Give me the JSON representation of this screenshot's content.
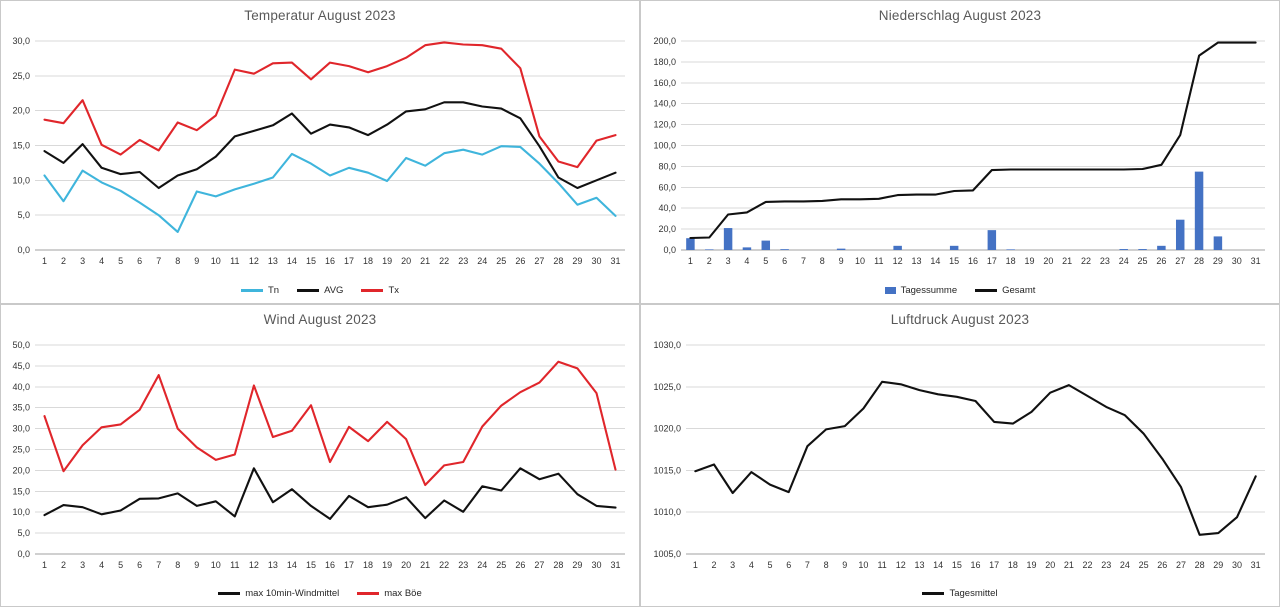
{
  "chart_data": [
    {
      "type": "line",
      "title": "Temperatur August 2023",
      "categories": [
        1,
        2,
        3,
        4,
        5,
        6,
        7,
        8,
        9,
        10,
        11,
        12,
        13,
        14,
        15,
        16,
        17,
        18,
        19,
        20,
        21,
        22,
        23,
        24,
        25,
        26,
        27,
        28,
        29,
        30,
        31
      ],
      "ylim": [
        0,
        30
      ],
      "ystep": 5,
      "ytick_format": "decimal-comma-1",
      "grid": true,
      "legend_position": "bottom",
      "series": [
        {
          "name": "Tn",
          "type": "line",
          "color": "#3fb5dc",
          "values": [
            10.7,
            7.0,
            11.4,
            9.7,
            8.5,
            6.8,
            5.0,
            2.6,
            8.4,
            7.7,
            8.7,
            9.5,
            10.4,
            13.8,
            12.4,
            10.7,
            11.8,
            11.1,
            9.9,
            13.2,
            12.1,
            13.9,
            14.4,
            13.7,
            14.9,
            14.8,
            12.4,
            9.6,
            6.5,
            7.5,
            4.9
          ]
        },
        {
          "name": "AVG",
          "type": "line",
          "color": "#111111",
          "values": [
            14.2,
            12.5,
            15.2,
            11.8,
            10.9,
            11.2,
            8.9,
            10.7,
            11.6,
            13.4,
            16.3,
            17.1,
            17.9,
            19.6,
            16.7,
            18.0,
            17.6,
            16.5,
            18.0,
            19.9,
            20.2,
            21.2,
            21.2,
            20.6,
            20.3,
            18.9,
            14.9,
            10.4,
            8.9,
            10.0,
            11.1
          ]
        },
        {
          "name": "Tx",
          "type": "line",
          "color": "#e0262b",
          "values": [
            18.7,
            18.2,
            21.5,
            15.1,
            13.7,
            15.8,
            14.3,
            18.3,
            17.2,
            19.3,
            25.9,
            25.3,
            26.8,
            26.9,
            24.5,
            26.9,
            26.4,
            25.5,
            26.4,
            27.6,
            29.4,
            29.8,
            29.5,
            29.4,
            28.9,
            26.1,
            16.3,
            12.7,
            11.9,
            15.7,
            16.5
          ]
        }
      ]
    },
    {
      "type": "combo",
      "title": "Niederschlag August 2023",
      "categories": [
        1,
        2,
        3,
        4,
        5,
        6,
        7,
        8,
        9,
        10,
        11,
        12,
        13,
        14,
        15,
        16,
        17,
        18,
        19,
        20,
        21,
        22,
        23,
        24,
        25,
        26,
        27,
        28,
        29,
        30,
        31
      ],
      "ylim": [
        0,
        200
      ],
      "ystep": 20,
      "ytick_format": "decimal-comma-1",
      "grid": true,
      "legend_position": "bottom",
      "series": [
        {
          "name": "Tagessumme",
          "type": "bar",
          "color": "#4472c4",
          "values": [
            11.3,
            0.6,
            21,
            2.5,
            9,
            0.8,
            0,
            0,
            1.3,
            0,
            0,
            4,
            0,
            0,
            4,
            0,
            19,
            0.6,
            0,
            0,
            0,
            0,
            0,
            0.9,
            0.9,
            4,
            29,
            75,
            13,
            0,
            0
          ]
        },
        {
          "name": "Gesamt",
          "type": "line",
          "color": "#111111",
          "values": [
            11.5,
            12,
            34,
            36,
            46,
            46.5,
            46.5,
            47,
            48.5,
            48.5,
            49,
            52.5,
            53,
            53,
            56.5,
            57,
            76.5,
            77,
            77,
            77,
            77,
            77,
            77,
            77,
            77.5,
            81.5,
            110,
            186,
            198.5,
            198.5,
            198.5
          ]
        }
      ]
    },
    {
      "type": "line",
      "title": "Wind August 2023",
      "categories": [
        1,
        2,
        3,
        4,
        5,
        6,
        7,
        8,
        9,
        10,
        11,
        12,
        13,
        14,
        15,
        16,
        17,
        18,
        19,
        20,
        21,
        22,
        23,
        24,
        25,
        26,
        27,
        28,
        29,
        30,
        31
      ],
      "ylim": [
        0,
        50
      ],
      "ystep": 5,
      "ytick_format": "decimal-comma-1",
      "grid": true,
      "legend_position": "bottom",
      "series": [
        {
          "name": "max 10min-Windmittel",
          "type": "line",
          "color": "#111111",
          "values": [
            9.3,
            11.7,
            11.2,
            9.5,
            10.4,
            13.2,
            13.3,
            14.5,
            11.5,
            12.6,
            9.0,
            20.5,
            12.4,
            15.5,
            11.5,
            8.4,
            13.9,
            11.2,
            11.8,
            13.6,
            8.6,
            12.8,
            10.1,
            16.2,
            15.2,
            20.5,
            17.9,
            19.2,
            14.3,
            11.5,
            11.1
          ]
        },
        {
          "name": "max Böe",
          "type": "line",
          "color": "#e0262b",
          "values": [
            33.0,
            19.8,
            26.0,
            30.3,
            31.0,
            34.5,
            42.8,
            30.0,
            25.5,
            22.5,
            23.8,
            40.3,
            28.0,
            29.5,
            35.6,
            22.0,
            30.4,
            27.0,
            31.6,
            27.5,
            16.5,
            21.2,
            22.0,
            30.5,
            35.5,
            38.7,
            41.0,
            46.0,
            44.4,
            38.5,
            20.2
          ]
        }
      ]
    },
    {
      "type": "line",
      "title": "Luftdruck August 2023",
      "categories": [
        1,
        2,
        3,
        4,
        5,
        6,
        7,
        8,
        9,
        10,
        11,
        12,
        13,
        14,
        15,
        16,
        17,
        18,
        19,
        20,
        21,
        22,
        23,
        24,
        25,
        26,
        27,
        28,
        29,
        30,
        31
      ],
      "ylim": [
        1005,
        1030
      ],
      "ystep": 5,
      "ytick_format": "decimal-comma-1",
      "grid": true,
      "legend_position": "bottom",
      "series": [
        {
          "name": "Tagesmittel",
          "type": "line",
          "color": "#111111",
          "values": [
            1014.9,
            1015.7,
            1012.3,
            1014.8,
            1013.3,
            1012.4,
            1017.9,
            1019.9,
            1020.3,
            1022.4,
            1025.6,
            1025.3,
            1024.6,
            1024.1,
            1023.8,
            1023.3,
            1020.8,
            1020.6,
            1022.0,
            1024.3,
            1025.2,
            1023.9,
            1022.6,
            1021.6,
            1019.4,
            1016.4,
            1013.0,
            1007.3,
            1007.5,
            1009.4,
            1014.3
          ]
        }
      ]
    }
  ],
  "colors": {
    "grid_line": "#d9d9d9",
    "axis_line": "#a0a0a0",
    "tick_text": "#333333",
    "title_text": "#595959",
    "bar_blue": "#4472c4",
    "line_red": "#e0262b",
    "line_cyan": "#3fb5dc",
    "line_black": "#111111"
  }
}
